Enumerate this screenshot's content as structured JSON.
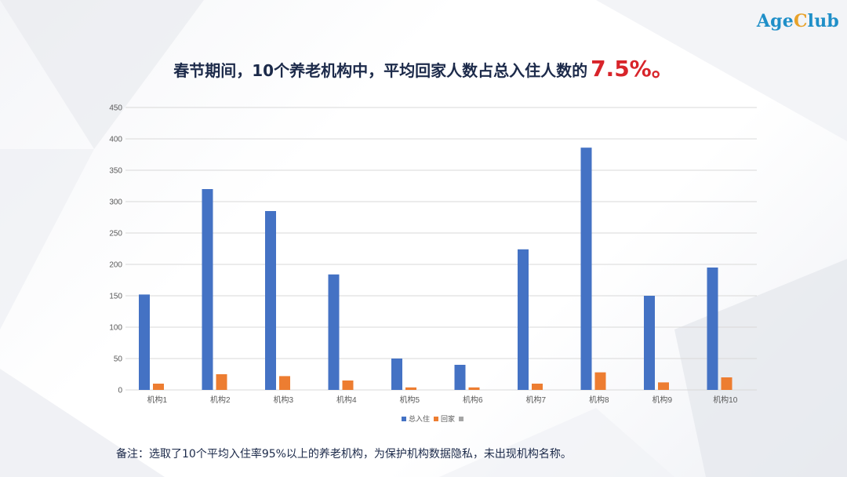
{
  "logo": {
    "part_a": "Age",
    "part_b": "C",
    "part_c": "lub"
  },
  "headline": {
    "text": "春节期间，10个养老机构中，平均回家人数占总入住人数的",
    "highlight": "7.5%。"
  },
  "colors": {
    "series_total": "#4472c4",
    "series_home": "#ed7d31",
    "series_third": "#a5a5a5",
    "gridline": "#d9d9d9",
    "headline_highlight": "#d8242a"
  },
  "chart_data": {
    "type": "bar",
    "title": "",
    "xlabel": "",
    "ylabel": "",
    "categories": [
      "机构1",
      "机构2",
      "机构3",
      "机构4",
      "机构5",
      "机构6",
      "机构7",
      "机构8",
      "机构9",
      "机构10"
    ],
    "series": [
      {
        "name": "总入住",
        "values": [
          152,
          320,
          285,
          184,
          50,
          40,
          224,
          386,
          150,
          195
        ]
      },
      {
        "name": "回家",
        "values": [
          10,
          25,
          22,
          15,
          4,
          4,
          10,
          28,
          12,
          20
        ]
      },
      {
        "name": "",
        "values": [
          0,
          0,
          0,
          0,
          0,
          0,
          0,
          0,
          0,
          0
        ]
      }
    ],
    "ylim": [
      0,
      450
    ],
    "yticks": [
      0,
      50,
      100,
      150,
      200,
      250,
      300,
      350,
      400,
      450
    ],
    "grid": true,
    "legend": "bottom-center"
  },
  "note": "备注：选取了10个平均入住率95%以上的养老机构，为保护机构数据隐私，未出现机构名称。"
}
